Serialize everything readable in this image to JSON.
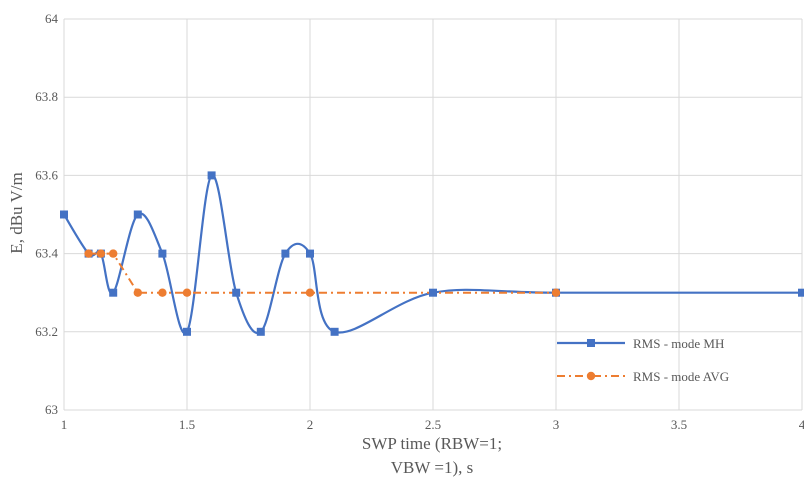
{
  "chart_data": {
    "type": "scatter",
    "title": "",
    "xlabel_line1": "SWP time (RBW=1;",
    "xlabel_line2": "VBW =1), s",
    "ylabel": "E, dBu V/m",
    "xlim": [
      1,
      4
    ],
    "ylim": [
      63,
      64
    ],
    "x_ticks": [
      "1",
      "1.5",
      "2",
      "2.5",
      "3",
      "3.5",
      "4"
    ],
    "y_ticks": [
      "63",
      "63.2",
      "63.4",
      "63.6",
      "63.8",
      "64"
    ],
    "grid": true,
    "legend_position": "right",
    "series": [
      {
        "name": "RMS - mode MH",
        "color": "#4472C4",
        "line": "solid smooth",
        "marker": "square",
        "points": [
          [
            1.0,
            63.5
          ],
          [
            1.1,
            63.4
          ],
          [
            1.15,
            63.4
          ],
          [
            1.2,
            63.3
          ],
          [
            1.3,
            63.5
          ],
          [
            1.4,
            63.4
          ],
          [
            1.5,
            63.2
          ],
          [
            1.6,
            63.6
          ],
          [
            1.7,
            63.3
          ],
          [
            1.8,
            63.2
          ],
          [
            1.9,
            63.4
          ],
          [
            2.0,
            63.4
          ],
          [
            2.1,
            63.2
          ],
          [
            2.5,
            63.3
          ],
          [
            3.0,
            63.3
          ],
          [
            4.0,
            63.3
          ]
        ]
      },
      {
        "name": "RMS - mode AVG",
        "color": "#ED7D31",
        "line": "dash-dot",
        "marker": "circle",
        "points": [
          [
            1.1,
            63.4
          ],
          [
            1.15,
            63.4
          ],
          [
            1.2,
            63.4
          ],
          [
            1.3,
            63.3
          ],
          [
            1.4,
            63.3
          ],
          [
            1.5,
            63.3
          ],
          [
            2.0,
            63.3
          ],
          [
            3.0,
            63.3
          ]
        ]
      }
    ]
  }
}
